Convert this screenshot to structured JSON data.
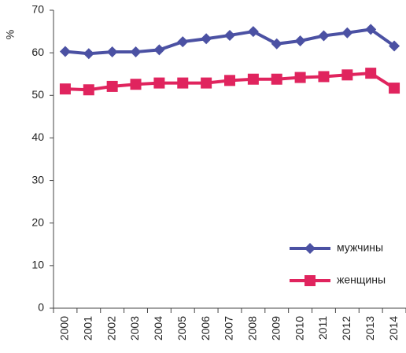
{
  "chart_data": {
    "type": "line",
    "ylabel": "%",
    "categories": [
      "2000",
      "2001",
      "2002",
      "2003",
      "2004",
      "2005",
      "2006",
      "2007",
      "2008",
      "2009",
      "2010",
      "2011",
      "2012",
      "2013",
      "2014"
    ],
    "series": [
      {
        "name": "мужчины",
        "color": "#4b51a3",
        "marker": "diamond",
        "values": [
          60.3,
          59.8,
          60.2,
          60.2,
          60.7,
          62.6,
          63.3,
          64.1,
          65.0,
          62.1,
          62.8,
          64.0,
          64.7,
          65.5,
          61.6
        ]
      },
      {
        "name": "женщины",
        "color": "#e0245e",
        "marker": "square",
        "values": [
          51.5,
          51.3,
          52.1,
          52.6,
          52.9,
          52.9,
          52.9,
          53.5,
          53.8,
          53.8,
          54.2,
          54.4,
          54.8,
          55.2,
          51.7
        ]
      }
    ],
    "ylim": [
      0,
      70
    ],
    "yticks": [
      0,
      10,
      20,
      30,
      40,
      50,
      60,
      70
    ],
    "grid": false,
    "legend": "lower right"
  }
}
